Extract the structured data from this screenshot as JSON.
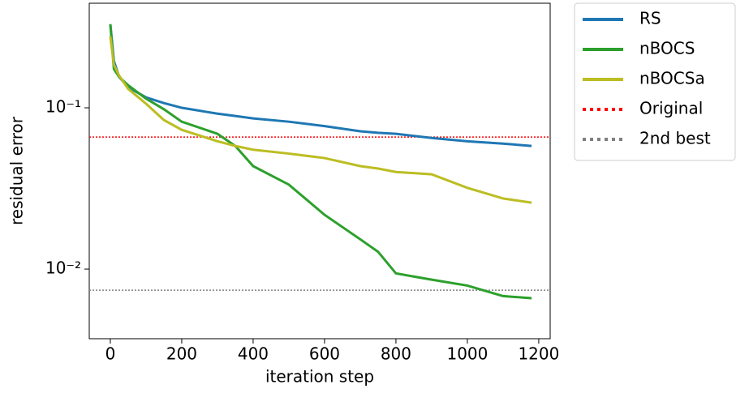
{
  "chart_data": {
    "type": "line",
    "xlabel": "iteration step",
    "ylabel": "residual error",
    "xlim": [
      -59,
      1232
    ],
    "ylim": [
      0.0037,
      0.445
    ],
    "log_y": true,
    "xticks": [
      0,
      200,
      400,
      600,
      800,
      1000,
      1200
    ],
    "yticks": [
      {
        "value": 0.01,
        "label": "10⁻²"
      },
      {
        "value": 0.1,
        "label": "10⁻¹"
      }
    ],
    "legend": "outside-upper-right",
    "x": [
      0,
      10,
      25,
      50,
      100,
      150,
      200,
      300,
      350,
      400,
      500,
      600,
      700,
      750,
      800,
      900,
      1000,
      1100,
      1180
    ],
    "series": [
      {
        "name": "RS",
        "color": "#1f77b4",
        "values": [
          0.33,
          0.195,
          0.155,
          0.134,
          0.116,
          0.107,
          0.1,
          0.092,
          0.089,
          0.086,
          0.082,
          0.077,
          0.0715,
          0.07,
          0.069,
          0.065,
          0.062,
          0.06,
          0.058
        ]
      },
      {
        "name": "nBOCS",
        "color": "#2ca02c",
        "values": [
          0.33,
          0.174,
          0.155,
          0.138,
          0.114,
          0.098,
          0.082,
          0.069,
          0.058,
          0.0435,
          0.0334,
          0.0217,
          0.0153,
          0.0128,
          0.0094,
          0.0086,
          0.0079,
          0.0068,
          0.0066
        ]
      },
      {
        "name": "nBOCSa",
        "color": "#bcbd22",
        "values": [
          0.277,
          0.185,
          0.158,
          0.131,
          0.106,
          0.084,
          0.073,
          0.062,
          0.058,
          0.055,
          0.052,
          0.0488,
          0.0435,
          0.042,
          0.04,
          0.0387,
          0.0319,
          0.0274,
          0.0258
        ]
      }
    ],
    "reference_lines": [
      {
        "name": "Original",
        "color": "#ff0000",
        "value": 0.0659
      },
      {
        "name": "2nd best",
        "color": "#808080",
        "value": 0.0074
      }
    ]
  }
}
